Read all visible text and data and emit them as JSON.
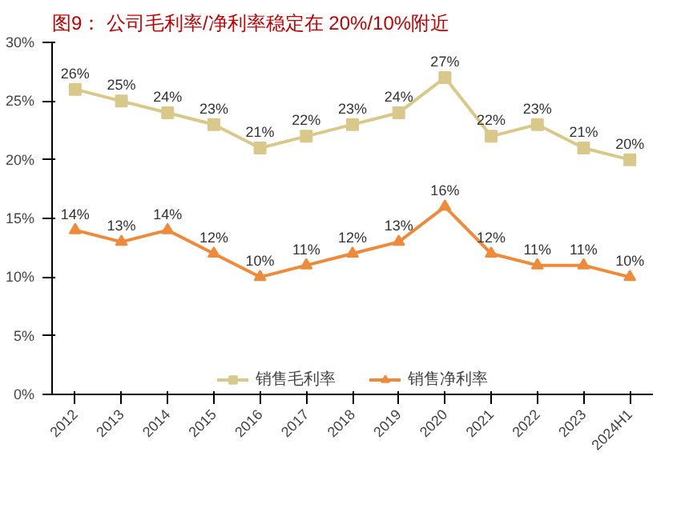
{
  "chart_data": {
    "type": "line",
    "title": "图9：  公司毛利率/净利率稳定在 20%/10%附近",
    "categories": [
      "2012",
      "2013",
      "2014",
      "2015",
      "2016",
      "2017",
      "2018",
      "2019",
      "2020",
      "2021",
      "2022",
      "2023",
      "2024H1"
    ],
    "series": [
      {
        "name": "销售毛利率",
        "color": "#d8c98a",
        "marker": "square",
        "values": [
          26,
          25,
          24,
          23,
          21,
          22,
          23,
          24,
          27,
          22,
          23,
          21,
          20
        ],
        "value_labels": [
          "26%",
          "25%",
          "24%",
          "23%",
          "21%",
          "22%",
          "23%",
          "24%",
          "27%",
          "22%",
          "23%",
          "21%",
          "20%"
        ]
      },
      {
        "name": "销售净利率",
        "color": "#ee8a3a",
        "marker": "triangle",
        "values": [
          14,
          13,
          14,
          12,
          10,
          11,
          12,
          13,
          16,
          12,
          11,
          11,
          10
        ],
        "value_labels": [
          "14%",
          "13%",
          "14%",
          "12%",
          "10%",
          "11%",
          "12%",
          "13%",
          "16%",
          "12%",
          "11%",
          "11%",
          "10%"
        ]
      }
    ],
    "ylim": [
      0,
      30
    ],
    "yticks": [
      {
        "value": 0,
        "label": "0%"
      },
      {
        "value": 5,
        "label": "5%"
      },
      {
        "value": 10,
        "label": "10%"
      },
      {
        "value": 15,
        "label": "15%"
      },
      {
        "value": 20,
        "label": "20%"
      },
      {
        "value": 25,
        "label": "25%"
      },
      {
        "value": 30,
        "label": "30%"
      }
    ],
    "grid": false,
    "legend": "bottom",
    "line_style": "solid"
  }
}
